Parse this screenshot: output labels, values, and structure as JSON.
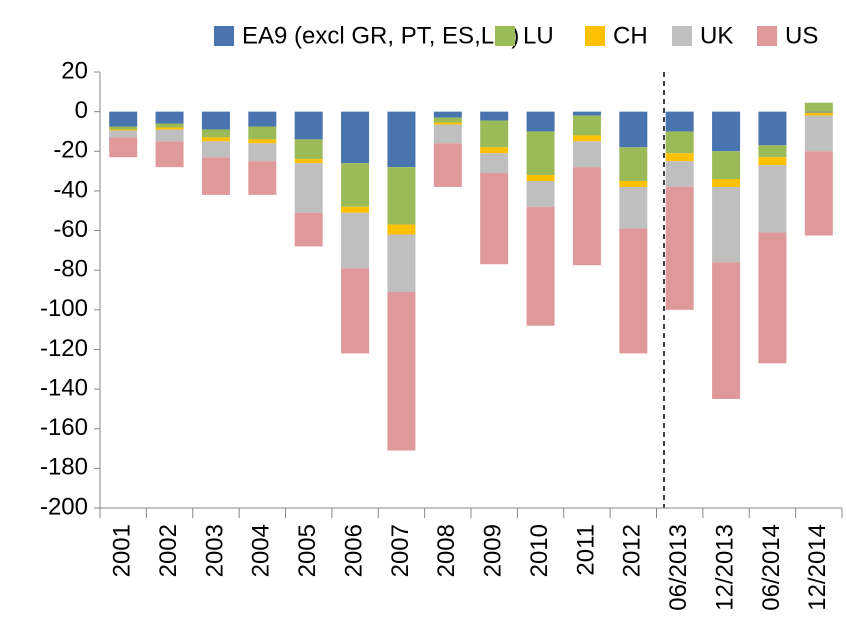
{
  "chart_data": {
    "type": "stacked_bar",
    "categories": [
      "2001",
      "2002",
      "2003",
      "2004",
      "2005",
      "2006",
      "2007",
      "2008",
      "2009",
      "2010",
      "2011",
      "2012",
      "06/2013",
      "12/2013",
      "06/2014",
      "12/2014"
    ],
    "series": [
      {
        "name": "EA9 (excl GR, PT, ES,LU)",
        "color": "#4a74b0",
        "values": [
          -7.5,
          -6,
          -9,
          -7.5,
          -14,
          -26,
          -28,
          -3,
          -4.5,
          -10,
          -2,
          -18,
          -10,
          -20,
          -17,
          -0.5
        ]
      },
      {
        "name": "LU",
        "color": "#9bbb59",
        "values": [
          -1.5,
          -2,
          -4,
          -6.5,
          -10,
          -22,
          -29,
          -2.5,
          -13.5,
          -22,
          -10,
          -17,
          -11,
          -14,
          -6,
          4.5
        ]
      },
      {
        "name": "CH",
        "color": "#ffc000",
        "values": [
          -0.5,
          -1,
          -2,
          -2,
          -2,
          -3,
          -5,
          -1,
          -3,
          -3,
          -3,
          -3,
          -4,
          -4,
          -4,
          -1.5
        ]
      },
      {
        "name": "UK",
        "color": "#bfbfbf",
        "values": [
          -3.5,
          -6,
          -8,
          -9,
          -25,
          -28,
          -29,
          -9.5,
          -10,
          -13,
          -13,
          -21,
          -13,
          -38,
          -34,
          -18
        ]
      },
      {
        "name": "US",
        "color": "#e0999a",
        "values": [
          -10,
          -13,
          -19,
          -17,
          -17,
          -43,
          -80,
          -22,
          -46,
          -60,
          -49.5,
          -63,
          -62,
          -69,
          -66,
          -42.5
        ]
      }
    ],
    "ylim": [
      -200,
      20
    ],
    "yticks": [
      -200,
      -180,
      -160,
      -140,
      -120,
      -100,
      -80,
      -60,
      -40,
      -20,
      0,
      20
    ]
  }
}
